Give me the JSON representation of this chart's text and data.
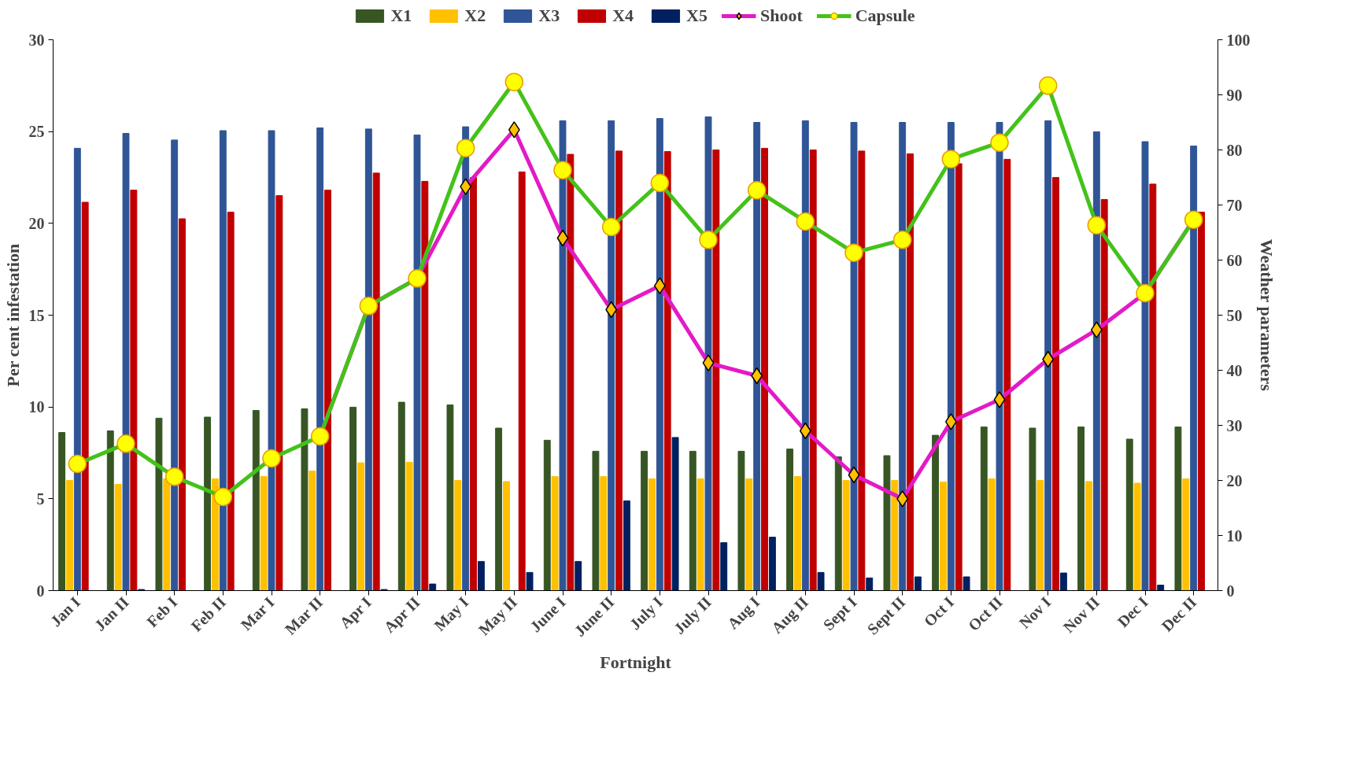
{
  "chart_data": {
    "type": "bar",
    "xlabel": "Fortnight",
    "ylabel": "Per cent infestation",
    "y2label": "Weather parameters",
    "categories": [
      "Jan I",
      "Jan II",
      "Feb I",
      "Feb II",
      "Mar I",
      "Mar II",
      "Apr I",
      "Apr II",
      "May I",
      "May II",
      "June I",
      "June II",
      "July I",
      "July II",
      "Aug I",
      "Aug II",
      "Sept I",
      "Sept II",
      "Oct I",
      "Oct II",
      "Nov I",
      "Nov II",
      "Dec I",
      "Dec II"
    ],
    "ylim": [
      0,
      30
    ],
    "yticks": [
      0,
      5,
      10,
      15,
      20,
      25,
      30
    ],
    "y2lim": [
      0,
      100
    ],
    "y2ticks": [
      0,
      10,
      20,
      30,
      40,
      50,
      60,
      70,
      80,
      90,
      100
    ],
    "grid": false,
    "legend": "top",
    "series": [
      {
        "name": "X1",
        "axis": "y2",
        "color": "#375623",
        "values": [
          28.7,
          29.0,
          31.3,
          31.5,
          32.7,
          33.0,
          33.3,
          34.2,
          33.7,
          29.5,
          27.3,
          25.3,
          25.3,
          25.3,
          25.3,
          25.7,
          24.3,
          24.5,
          28.2,
          29.7,
          29.5,
          29.7,
          27.5,
          29.7
        ]
      },
      {
        "name": "X2",
        "axis": "y2",
        "color": "#ffc000",
        "values": [
          20.0,
          19.3,
          20.3,
          20.3,
          20.7,
          21.7,
          23.2,
          23.3,
          20.0,
          19.8,
          20.7,
          20.7,
          20.3,
          20.3,
          20.3,
          20.7,
          20.0,
          20.0,
          19.7,
          20.3,
          20.0,
          19.8,
          19.5,
          20.3
        ]
      },
      {
        "name": "X3",
        "axis": "y2",
        "color": "#2f5597",
        "values": [
          80.3,
          83.0,
          81.8,
          83.5,
          83.5,
          84.0,
          83.8,
          82.7,
          84.2,
          null,
          85.3,
          85.3,
          85.7,
          86.0,
          85.0,
          85.3,
          85.0,
          85.0,
          85.0,
          85.0,
          85.3,
          83.3,
          81.5,
          80.7
        ]
      },
      {
        "name": "X4",
        "axis": "y2",
        "color": "#c00000",
        "values": [
          70.5,
          72.7,
          67.5,
          68.7,
          71.7,
          72.7,
          75.8,
          74.3,
          75.0,
          76.0,
          79.2,
          79.8,
          79.7,
          80.0,
          80.3,
          80.0,
          79.8,
          79.3,
          77.5,
          78.3,
          75.0,
          71.0,
          73.8,
          68.7
        ]
      },
      {
        "name": "X5",
        "axis": "y2",
        "color": "#002060",
        "values": [
          0,
          0.2,
          0,
          0,
          0,
          0,
          0.2,
          1.2,
          5.3,
          3.3,
          5.3,
          16.3,
          27.8,
          8.7,
          9.7,
          3.3,
          2.3,
          2.5,
          2.5,
          0,
          3.2,
          0,
          1.0,
          0
        ]
      },
      {
        "name": "Shoot",
        "type": "line",
        "axis": "y",
        "marker": "diamond",
        "color": "#e31ac6",
        "values": [
          null,
          null,
          null,
          null,
          null,
          8.4,
          15.5,
          17.0,
          22.0,
          25.1,
          19.2,
          15.3,
          16.6,
          12.4,
          11.7,
          8.7,
          6.3,
          5.0,
          9.2,
          10.4,
          12.6,
          14.2,
          16.2,
          20.2
        ]
      },
      {
        "name": "Capsule",
        "type": "line",
        "axis": "y",
        "marker": "circle",
        "color": "#44c21a",
        "values": [
          6.9,
          8.0,
          6.2,
          5.1,
          7.2,
          8.4,
          15.5,
          17.0,
          24.1,
          27.7,
          22.9,
          19.8,
          22.2,
          19.1,
          21.8,
          20.1,
          18.4,
          19.1,
          23.5,
          24.4,
          27.5,
          19.9,
          16.2,
          20.2
        ]
      }
    ]
  }
}
